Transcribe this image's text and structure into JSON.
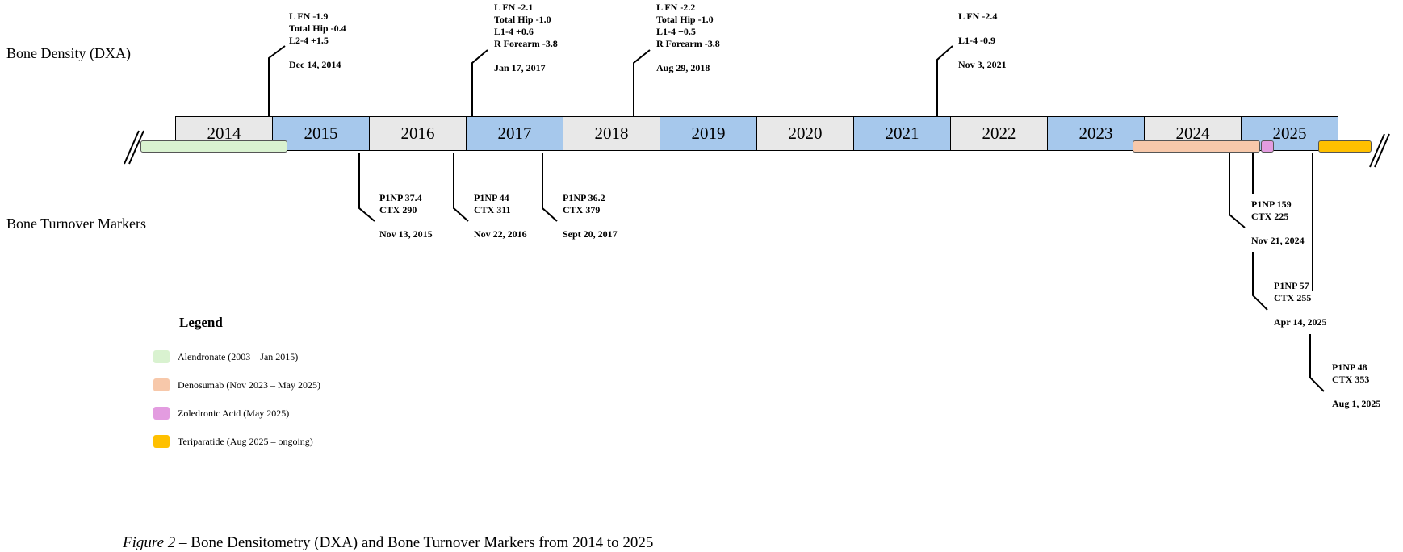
{
  "row_labels": {
    "dxa": "Bone Density (DXA)",
    "btm": "Bone Turnover Markers"
  },
  "years": [
    {
      "label": "2014",
      "shade": "grey"
    },
    {
      "label": "2015",
      "shade": "blue"
    },
    {
      "label": "2016",
      "shade": "grey"
    },
    {
      "label": "2017",
      "shade": "blue"
    },
    {
      "label": "2018",
      "shade": "grey"
    },
    {
      "label": "2019",
      "shade": "blue"
    },
    {
      "label": "2020",
      "shade": "grey"
    },
    {
      "label": "2021",
      "shade": "blue"
    },
    {
      "label": "2022",
      "shade": "grey"
    },
    {
      "label": "2023",
      "shade": "blue"
    },
    {
      "label": "2024",
      "shade": "grey"
    },
    {
      "label": "2025",
      "shade": "blue"
    }
  ],
  "dxa": [
    {
      "lines": [
        "L FN -1.9",
        "Total Hip -0.4",
        "L2-4 +1.5"
      ],
      "date": "Dec 14, 2014"
    },
    {
      "lines": [
        "L FN -2.1",
        "Total Hip -1.0",
        "L1-4 +0.6",
        "R Forearm -3.8"
      ],
      "date": "Jan 17, 2017"
    },
    {
      "lines": [
        "L FN -2.2",
        "Total Hip -1.0",
        "L1-4 +0.5",
        "R Forearm -3.8"
      ],
      "date": "Aug 29, 2018"
    },
    {
      "lines": [
        "L FN -2.4",
        "",
        "L1-4 -0.9"
      ],
      "date": "Nov 3, 2021"
    }
  ],
  "btm": [
    {
      "p1np": "P1NP 37.4",
      "ctx": "CTX 290",
      "date": "Nov 13, 2015"
    },
    {
      "p1np": "P1NP 44",
      "ctx": "CTX 311",
      "date": "Nov 22, 2016"
    },
    {
      "p1np": "P1NP 36.2",
      "ctx": "CTX 379",
      "date": "Sept 20, 2017"
    },
    {
      "p1np": "P1NP 159",
      "ctx": "CTX 225",
      "date": "Nov 21, 2024"
    },
    {
      "p1np": "P1NP 57",
      "ctx": "CTX 255",
      "date": "Apr 14, 2025"
    },
    {
      "p1np": "P1NP 48",
      "ctx": "CTX 353",
      "date": "Aug 1, 2025"
    }
  ],
  "legend": {
    "title": "Legend",
    "items": [
      {
        "label": "Alendronate (2003 – Jan 2015)",
        "color": "#d9f2d0"
      },
      {
        "label": "Denosumab (Nov 2023 – May 2025)",
        "color": "#f7c8aa"
      },
      {
        "label": "Zoledronic Acid (May 2025)",
        "color": "#e39ce0"
      },
      {
        "label": "Teriparatide (Aug 2025 – ongoing)",
        "color": "#ffc000"
      }
    ]
  },
  "caption": {
    "fig": "Figure 2",
    "rest": " – Bone Densitometry (DXA) and Bone Turnover Markers from 2014 to 2025"
  }
}
